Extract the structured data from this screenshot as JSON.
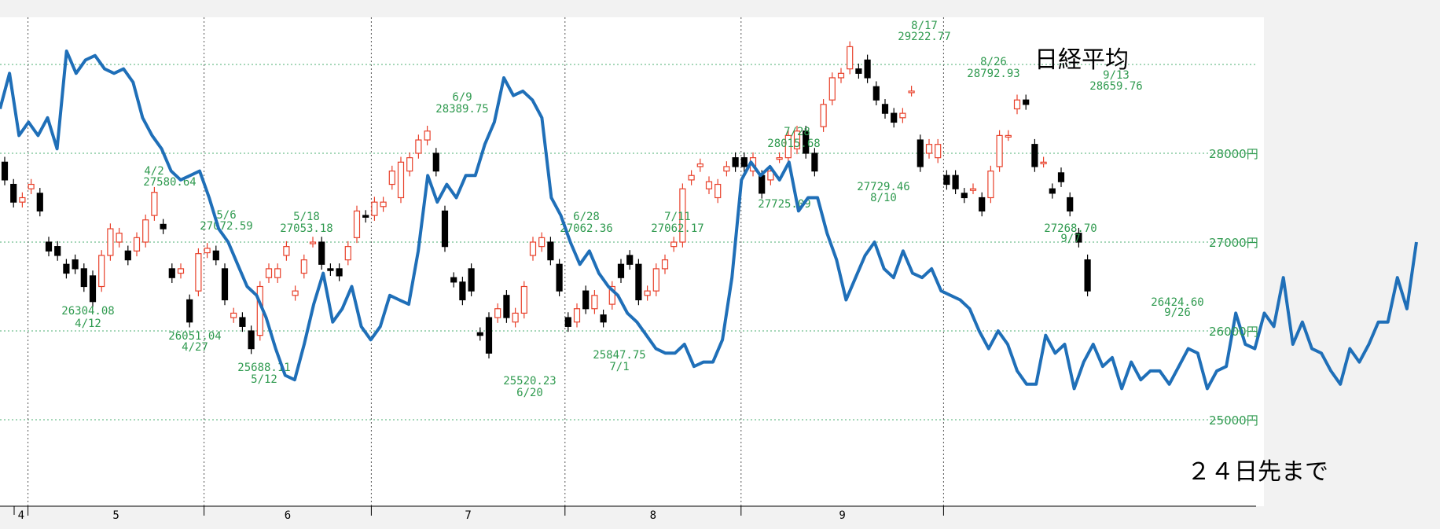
{
  "chart_data": {
    "type": "candlestick+line",
    "title": "日経平均",
    "note": "２４日先まで",
    "y_unit": "円",
    "yticks": [
      25000,
      26000,
      27000,
      28000
    ],
    "ytick_labels": [
      "25000円",
      "26000円",
      "27000円",
      "28000円"
    ],
    "ylim": [
      24000,
      29400
    ],
    "months": [
      "4",
      "5",
      "6",
      "7",
      "8",
      "9"
    ],
    "candles": [
      {
        "date": "3/29",
        "open": 27900,
        "close": 27700
      },
      {
        "date": "3/30",
        "open": 27650,
        "close": 27450
      },
      {
        "date": "3/31",
        "open": 27450,
        "close": 27500
      },
      {
        "date": "4/1",
        "open": 27600,
        "close": 27650
      },
      {
        "date": "4/4",
        "open": 27550,
        "close": 27350
      },
      {
        "date": "4/5",
        "open": 27000,
        "close": 26900
      },
      {
        "date": "4/6",
        "open": 26950,
        "close": 26850
      },
      {
        "date": "4/7",
        "open": 26750,
        "close": 26650
      },
      {
        "date": "4/8",
        "open": 26800,
        "close": 26700
      },
      {
        "date": "4/11",
        "open": 26700,
        "close": 26500
      },
      {
        "date": "4/12",
        "open": 26620,
        "close": 26330
      },
      {
        "date": "4/13",
        "open": 26500,
        "close": 26850
      },
      {
        "date": "4/14",
        "open": 26850,
        "close": 27150
      },
      {
        "date": "4/15",
        "open": 27000,
        "close": 27100
      },
      {
        "date": "4/18",
        "open": 26900,
        "close": 26800
      },
      {
        "date": "4/19",
        "open": 26900,
        "close": 27050
      },
      {
        "date": "4/20",
        "open": 27000,
        "close": 27250
      },
      {
        "date": "4/21",
        "open": 27300,
        "close": 27560
      },
      {
        "date": "4/22",
        "open": 27200,
        "close": 27150
      },
      {
        "date": "4/25",
        "open": 26700,
        "close": 26600
      },
      {
        "date": "4/26",
        "open": 26650,
        "close": 26700
      },
      {
        "date": "4/27",
        "open": 26350,
        "close": 26100
      },
      {
        "date": "4/28",
        "open": 26450,
        "close": 26870
      },
      {
        "date": "5/2",
        "open": 26880,
        "close": 26930
      },
      {
        "date": "5/6",
        "open": 26900,
        "close": 26800
      },
      {
        "date": "5/9",
        "open": 26700,
        "close": 26350
      },
      {
        "date": "5/10",
        "open": 26150,
        "close": 26200
      },
      {
        "date": "5/11",
        "open": 26150,
        "close": 26050
      },
      {
        "date": "5/12",
        "open": 26000,
        "close": 25800
      },
      {
        "date": "5/13",
        "open": 25950,
        "close": 26500
      },
      {
        "date": "5/16",
        "open": 26600,
        "close": 26700
      },
      {
        "date": "5/17",
        "open": 26600,
        "close": 26700
      },
      {
        "date": "5/18",
        "open": 26850,
        "close": 26950
      },
      {
        "date": "5/19",
        "open": 26400,
        "close": 26450
      },
      {
        "date": "5/20",
        "open": 26650,
        "close": 26800
      },
      {
        "date": "5/23",
        "open": 27000,
        "close": 27000
      },
      {
        "date": "5/24",
        "open": 27000,
        "close": 26750
      },
      {
        "date": "5/25",
        "open": 26700,
        "close": 26680
      },
      {
        "date": "5/26",
        "open": 26700,
        "close": 26620
      },
      {
        "date": "5/27",
        "open": 26800,
        "close": 26950
      },
      {
        "date": "5/30",
        "open": 27050,
        "close": 27350
      },
      {
        "date": "5/31",
        "open": 27300,
        "close": 27280
      },
      {
        "date": "6/1",
        "open": 27300,
        "close": 27450
      },
      {
        "date": "6/2",
        "open": 27400,
        "close": 27450
      },
      {
        "date": "6/3",
        "open": 27650,
        "close": 27800
      },
      {
        "date": "6/6",
        "open": 27500,
        "close": 27900
      },
      {
        "date": "6/7",
        "open": 27800,
        "close": 27950
      },
      {
        "date": "6/8",
        "open": 28000,
        "close": 28150
      },
      {
        "date": "6/9",
        "open": 28150,
        "close": 28250
      },
      {
        "date": "6/10",
        "open": 28000,
        "close": 27800
      },
      {
        "date": "6/13",
        "open": 27350,
        "close": 26950
      },
      {
        "date": "6/14",
        "open": 26600,
        "close": 26550
      },
      {
        "date": "6/15",
        "open": 26550,
        "close": 26350
      },
      {
        "date": "6/16",
        "open": 26700,
        "close": 26450
      },
      {
        "date": "6/17",
        "open": 25980,
        "close": 25950
      },
      {
        "date": "6/20",
        "open": 26150,
        "close": 25750
      },
      {
        "date": "6/21",
        "open": 26150,
        "close": 26250
      },
      {
        "date": "6/22",
        "open": 26400,
        "close": 26150
      },
      {
        "date": "6/23",
        "open": 26100,
        "close": 26200
      },
      {
        "date": "6/24",
        "open": 26200,
        "close": 26500
      },
      {
        "date": "6/27",
        "open": 26850,
        "close": 27000
      },
      {
        "date": "6/28",
        "open": 26950,
        "close": 27050
      },
      {
        "date": "6/29",
        "open": 27000,
        "close": 26800
      },
      {
        "date": "6/30",
        "open": 26750,
        "close": 26450
      },
      {
        "date": "7/1",
        "open": 26150,
        "close": 26050
      },
      {
        "date": "7/4",
        "open": 26100,
        "close": 26250
      },
      {
        "date": "7/5",
        "open": 26450,
        "close": 26250
      },
      {
        "date": "7/6",
        "open": 26250,
        "close": 26400
      },
      {
        "date": "7/7",
        "open": 26180,
        "close": 26100
      },
      {
        "date": "7/8",
        "open": 26300,
        "close": 26500
      },
      {
        "date": "7/11",
        "open": 26750,
        "close": 26600
      },
      {
        "date": "7/12",
        "open": 26850,
        "close": 26750
      },
      {
        "date": "7/13",
        "open": 26750,
        "close": 26350
      },
      {
        "date": "7/14",
        "open": 26400,
        "close": 26450
      },
      {
        "date": "7/15",
        "open": 26450,
        "close": 26700
      },
      {
        "date": "7/19",
        "open": 26700,
        "close": 26800
      },
      {
        "date": "7/20",
        "open": 26950,
        "close": 27000
      },
      {
        "date": "7/21",
        "open": 27000,
        "close": 27600
      },
      {
        "date": "7/22",
        "open": 27700,
        "close": 27750
      },
      {
        "date": "7/25",
        "open": 27850,
        "close": 27880
      },
      {
        "date": "7/26",
        "open": 27600,
        "close": 27680
      },
      {
        "date": "7/27",
        "open": 27500,
        "close": 27650
      },
      {
        "date": "7/28",
        "open": 27800,
        "close": 27850
      },
      {
        "date": "7/29",
        "open": 27950,
        "close": 27850
      },
      {
        "date": "8/1",
        "open": 27950,
        "close": 27850
      },
      {
        "date": "8/2",
        "open": 27800,
        "close": 27950
      },
      {
        "date": "8/3",
        "open": 27750,
        "close": 27550
      },
      {
        "date": "8/4",
        "open": 27700,
        "close": 27800
      },
      {
        "date": "8/5",
        "open": 27950,
        "close": 27950
      },
      {
        "date": "8/8",
        "open": 27950,
        "close": 28200
      },
      {
        "date": "8/9",
        "open": 28050,
        "close": 28250
      },
      {
        "date": "8/10",
        "open": 28250,
        "close": 28000
      },
      {
        "date": "8/11",
        "open": 28000,
        "close": 27800
      },
      {
        "date": "8/12",
        "open": 28300,
        "close": 28550
      },
      {
        "date": "8/15",
        "open": 28600,
        "close": 28850
      },
      {
        "date": "8/16",
        "open": 28850,
        "close": 28900
      },
      {
        "date": "8/17",
        "open": 28950,
        "close": 29200
      },
      {
        "date": "8/18",
        "open": 28950,
        "close": 28900
      },
      {
        "date": "8/19",
        "open": 29050,
        "close": 28850
      },
      {
        "date": "8/22",
        "open": 28750,
        "close": 28600
      },
      {
        "date": "8/23",
        "open": 28550,
        "close": 28450
      },
      {
        "date": "8/24",
        "open": 28450,
        "close": 28350
      },
      {
        "date": "8/25",
        "open": 28400,
        "close": 28450
      },
      {
        "date": "8/26",
        "open": 28700,
        "close": 28700
      },
      {
        "date": "8/29",
        "open": 28150,
        "close": 27850
      },
      {
        "date": "8/30",
        "open": 28000,
        "close": 28100
      },
      {
        "date": "8/31",
        "open": 27950,
        "close": 28100
      },
      {
        "date": "9/1",
        "open": 27750,
        "close": 27650
      },
      {
        "date": "9/2",
        "open": 27750,
        "close": 27600
      },
      {
        "date": "9/5",
        "open": 27550,
        "close": 27500
      },
      {
        "date": "9/6",
        "open": 27600,
        "close": 27600
      },
      {
        "date": "9/7",
        "open": 27500,
        "close": 27350
      },
      {
        "date": "9/8",
        "open": 27500,
        "close": 27800
      },
      {
        "date": "9/9",
        "open": 27850,
        "close": 28200
      },
      {
        "date": "9/12",
        "open": 28200,
        "close": 28200
      },
      {
        "date": "9/13",
        "open": 28500,
        "close": 28600
      },
      {
        "date": "9/14",
        "open": 28600,
        "close": 28550
      },
      {
        "date": "9/15",
        "open": 28100,
        "close": 27850
      },
      {
        "date": "9/16",
        "open": 27900,
        "close": 27900
      },
      {
        "date": "9/20",
        "open": 27600,
        "close": 27550
      },
      {
        "date": "9/21",
        "open": 27780,
        "close": 27680
      },
      {
        "date": "9/22",
        "open": 27500,
        "close": 27350
      },
      {
        "date": "9/26",
        "open": 27100,
        "close": 27000
      },
      {
        "date": "9/27",
        "open": 26800,
        "close": 26450
      }
    ],
    "forecast_line": {
      "color": "#1f6fb8",
      "values": [
        28500,
        28900,
        28200,
        28350,
        28200,
        28400,
        28050,
        29150,
        28900,
        29050,
        29100,
        28950,
        28900,
        28950,
        28800,
        28400,
        28200,
        28050,
        27800,
        27700,
        27750,
        27800,
        27500,
        27150,
        27000,
        26750,
        26500,
        26400,
        26150,
        25800,
        25500,
        25450,
        25850,
        26300,
        26650,
        26100,
        26250,
        26500,
        26050,
        25900,
        26050,
        26400,
        26350,
        26300,
        26900,
        27750,
        27450,
        27650,
        27500,
        27750,
        27750,
        28100,
        28350,
        28850,
        28650,
        28700,
        28600,
        28400,
        27500,
        27300,
        27000,
        26750,
        26900,
        26650,
        26500,
        26400,
        26200,
        26100,
        25950,
        25800,
        25750,
        25750,
        25850,
        25600,
        25650,
        25650,
        25900,
        26600,
        27700,
        27900,
        27750,
        27850,
        27700,
        27900,
        27350,
        27500,
        27500,
        27100,
        26800,
        26350,
        26600,
        26850,
        27000,
        26700,
        26600,
        26900,
        26650,
        26600,
        26700,
        26450,
        26400,
        26350,
        26250,
        26000,
        25800,
        26000,
        25850,
        25550,
        25400,
        25400,
        25950,
        25750,
        25850,
        25350,
        25650,
        25850,
        25600,
        25700,
        25350,
        25650,
        25450,
        25550,
        25550,
        25400,
        25600,
        25800,
        25750,
        25350,
        25550,
        25600,
        26200,
        25850,
        25800,
        26200,
        26050,
        26600,
        25850,
        26100,
        25800,
        25750,
        25550,
        25400,
        25800,
        25650,
        25850,
        26100,
        26100,
        26600,
        26250,
        27000
      ]
    },
    "annotations": [
      {
        "text": "26304.08",
        "date": "4/12"
      },
      {
        "text": "4/12"
      },
      {
        "text": "4/2"
      },
      {
        "text": "27580.64"
      },
      {
        "text": "26051.04"
      },
      {
        "text": "4/27"
      },
      {
        "text": "5/6"
      },
      {
        "text": "27072.59"
      },
      {
        "text": "5/18"
      },
      {
        "text": "27053.18"
      },
      {
        "text": "25688.11"
      },
      {
        "text": "5/12"
      },
      {
        "text": "6/9"
      },
      {
        "text": "28389.75"
      },
      {
        "text": "25520.23"
      },
      {
        "text": "6/20"
      },
      {
        "text": "6/28"
      },
      {
        "text": "27062.36"
      },
      {
        "text": "25847.75"
      },
      {
        "text": "7/1"
      },
      {
        "text": "7/11"
      },
      {
        "text": "27062.17"
      },
      {
        "text": "7/28"
      },
      {
        "text": "28015.68"
      },
      {
        "text": "27725.09"
      },
      {
        "text": "27729.46"
      },
      {
        "text": "8/10"
      },
      {
        "text": "8/17"
      },
      {
        "text": "29222.77"
      },
      {
        "text": "8/26"
      },
      {
        "text": "28792.93"
      },
      {
        "text": "9/13"
      },
      {
        "text": "28659.76"
      },
      {
        "text": "27268.70"
      },
      {
        "text": "9/7"
      },
      {
        "text": "26424.60"
      },
      {
        "text": "9/26"
      }
    ],
    "colors": {
      "up": "#e8402a",
      "down": "#000000",
      "grid": "#4caf73",
      "labels": "#2f9a4f"
    }
  }
}
